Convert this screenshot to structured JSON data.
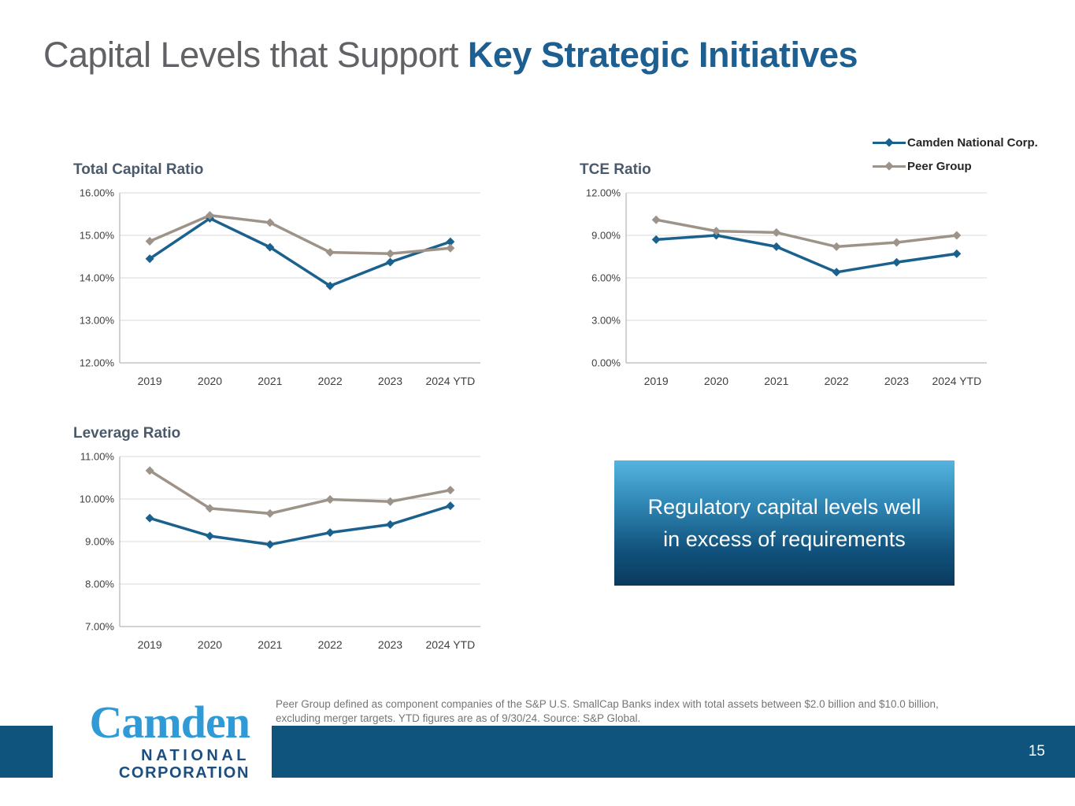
{
  "slide": {
    "title_gray": "Capital Levels that Support ",
    "title_blue": "Key Strategic Initiatives",
    "page_number": "15",
    "footnote": [
      "Peer Group defined as component companies of the S&P U.S. SmallCap Banks index with total assets between $2.0 billion and $10.0 billion,",
      "excluding merger targets. YTD figures are as of 9/30/24. Source: S&P Global."
    ]
  },
  "legend": {
    "items": [
      {
        "label": "Camden National Corp.",
        "color": "#1B618E"
      },
      {
        "label": "Peer Group",
        "color": "#9D9388"
      }
    ]
  },
  "callout": {
    "text": "Regulatory capital levels well in excess of requirements"
  },
  "logo": {
    "line1": "Camden",
    "line2": "NATIONAL",
    "line3": "CORPORATION"
  },
  "colors": {
    "camden_blue": "#1B618E",
    "peer_gray": "#9D9388",
    "title_gray": "#606266",
    "title_blue": "#1D5F90",
    "chart_title": "#4A5A6B",
    "gridline": "#D9D9D9",
    "axis": "#A6A6A6",
    "tick_text": "#3F3F3F",
    "footer_blue": "#0F547D",
    "logo_blue": "#2F9AD5",
    "logo_navy": "#1C4E80",
    "callout_gradient_top": "#55B4DF",
    "callout_gradient_bottom": "#0A3A5D",
    "footnote_gray": "#757575"
  },
  "chart_data": [
    {
      "type": "line",
      "title": "Total Capital Ratio",
      "categories": [
        "2019",
        "2020",
        "2021",
        "2022",
        "2023",
        "2024 YTD"
      ],
      "ylim": [
        12,
        16
      ],
      "ytick_step": 1,
      "ytick_format": "percent2",
      "grid": true,
      "legend_position": "top-right-shared",
      "series": [
        {
          "name": "Camden National Corp.",
          "color": "#1B618E",
          "values": [
            14.45,
            15.4,
            14.72,
            13.81,
            14.37,
            14.85
          ]
        },
        {
          "name": "Peer Group",
          "color": "#9D9388",
          "values": [
            14.86,
            15.47,
            15.3,
            14.6,
            14.57,
            14.7
          ]
        }
      ]
    },
    {
      "type": "line",
      "title": "TCE Ratio",
      "categories": [
        "2019",
        "2020",
        "2021",
        "2022",
        "2023",
        "2024 YTD"
      ],
      "ylim": [
        0,
        12
      ],
      "ytick_step": 3,
      "ytick_format": "percent2",
      "grid": true,
      "legend_position": "top-right-shared",
      "series": [
        {
          "name": "Camden National Corp.",
          "color": "#1B618E",
          "values": [
            8.7,
            9.0,
            8.2,
            6.4,
            7.1,
            7.7
          ]
        },
        {
          "name": "Peer Group",
          "color": "#9D9388",
          "values": [
            10.1,
            9.3,
            9.2,
            8.2,
            8.5,
            9.0
          ]
        }
      ]
    },
    {
      "type": "line",
      "title": "Leverage Ratio",
      "categories": [
        "2019",
        "2020",
        "2021",
        "2022",
        "2023",
        "2024 YTD"
      ],
      "ylim": [
        7,
        11
      ],
      "ytick_step": 1,
      "ytick_format": "percent2",
      "grid": true,
      "legend_position": "top-right-shared",
      "series": [
        {
          "name": "Camden National Corp.",
          "color": "#1B618E",
          "values": [
            9.55,
            9.13,
            8.93,
            9.21,
            9.4,
            9.84
          ]
        },
        {
          "name": "Peer Group",
          "color": "#9D9388",
          "values": [
            10.67,
            9.78,
            9.66,
            9.99,
            9.94,
            10.21
          ]
        }
      ]
    }
  ]
}
